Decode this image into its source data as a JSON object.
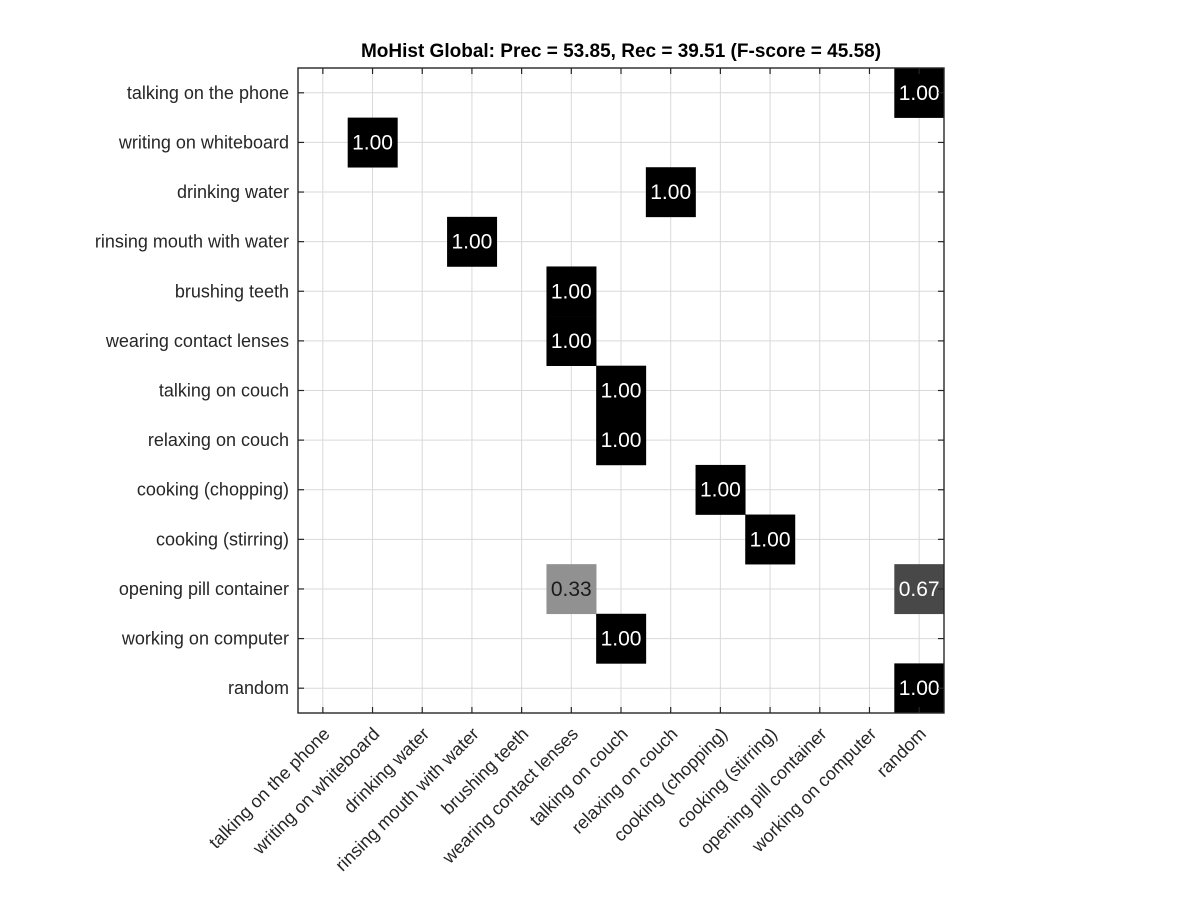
{
  "chart_data": {
    "type": "heatmap",
    "title": "MoHist Global: Prec = 53.85, Rec = 39.51 (F-score = 45.58)",
    "row_labels": [
      "talking on the phone",
      "writing on whiteboard",
      "drinking water",
      "rinsing mouth with water",
      "brushing teeth",
      "wearing contact lenses",
      "talking on couch",
      "relaxing on couch",
      "cooking (chopping)",
      "cooking (stirring)",
      "opening pill container",
      "working on computer",
      "random"
    ],
    "col_labels": [
      "talking on the phone",
      "writing on whiteboard",
      "drinking water",
      "rinsing mouth with water",
      "brushing teeth",
      "wearing contact lenses",
      "talking on couch",
      "relaxing on couch",
      "cooking (chopping)",
      "cooking (stirring)",
      "opening pill container",
      "working on computer",
      "random"
    ],
    "cells": [
      {
        "row": 0,
        "col": 12,
        "value": 1.0,
        "label": "1.00"
      },
      {
        "row": 1,
        "col": 1,
        "value": 1.0,
        "label": "1.00"
      },
      {
        "row": 2,
        "col": 7,
        "value": 1.0,
        "label": "1.00"
      },
      {
        "row": 3,
        "col": 3,
        "value": 1.0,
        "label": "1.00"
      },
      {
        "row": 4,
        "col": 5,
        "value": 1.0,
        "label": "1.00"
      },
      {
        "row": 5,
        "col": 5,
        "value": 1.0,
        "label": "1.00"
      },
      {
        "row": 6,
        "col": 6,
        "value": 1.0,
        "label": "1.00"
      },
      {
        "row": 7,
        "col": 6,
        "value": 1.0,
        "label": "1.00"
      },
      {
        "row": 8,
        "col": 8,
        "value": 1.0,
        "label": "1.00"
      },
      {
        "row": 9,
        "col": 9,
        "value": 1.0,
        "label": "1.00"
      },
      {
        "row": 10,
        "col": 5,
        "value": 0.33,
        "label": "0.33"
      },
      {
        "row": 10,
        "col": 12,
        "value": 0.67,
        "label": "0.67"
      },
      {
        "row": 11,
        "col": 6,
        "value": 1.0,
        "label": "1.00"
      },
      {
        "row": 12,
        "col": 12,
        "value": 1.0,
        "label": "1.00"
      }
    ],
    "colormap": "gray-reversed",
    "value_range": [
      0,
      1
    ],
    "grid": true
  }
}
